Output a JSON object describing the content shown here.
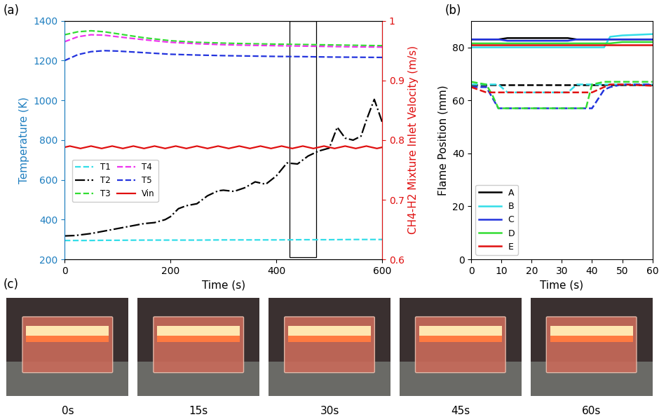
{
  "chart_data": [
    {
      "type": "line",
      "panel_label": "(a)",
      "xlabel": "Time (s)",
      "ylabel": "Temperature (K)",
      "y2label": "CH4-H2 Mixture Inlet Velocity (m/s)",
      "xlim": [
        0,
        600
      ],
      "xticks": [
        0,
        200,
        400,
        600
      ],
      "ylim": [
        200,
        1400
      ],
      "yticks": [
        200,
        400,
        600,
        800,
        1000,
        1200,
        1400
      ],
      "y2lim": [
        0.6,
        1
      ],
      "y2ticks": [
        0.6,
        0.7,
        0.8,
        0.9,
        1
      ],
      "legend": "center left",
      "highlight_x": [
        425,
        475
      ],
      "series": [
        {
          "name": "T1",
          "color": "#33dde8",
          "line_style": "dashed",
          "x": [
            0,
            25,
            50,
            75,
            100,
            150,
            200,
            250,
            300,
            350,
            400,
            450,
            500,
            550,
            600
          ],
          "values": [
            295,
            295,
            295,
            296,
            296,
            297,
            297,
            297,
            298,
            298,
            298,
            299,
            299,
            300,
            300
          ]
        },
        {
          "name": "T2",
          "color": "#000000",
          "line_style": "dashdot",
          "x": [
            0,
            20,
            50,
            80,
            100,
            120,
            150,
            170,
            190,
            200,
            215,
            230,
            250,
            270,
            290,
            300,
            320,
            340,
            360,
            380,
            400,
            420,
            440,
            460,
            480,
            500,
            515,
            530,
            545,
            560,
            570,
            585,
            600
          ],
          "values": [
            318,
            320,
            330,
            345,
            355,
            365,
            380,
            385,
            400,
            415,
            455,
            470,
            480,
            520,
            545,
            548,
            542,
            560,
            590,
            578,
            620,
            685,
            680,
            720,
            745,
            760,
            865,
            810,
            800,
            820,
            900,
            1005,
            890
          ]
        },
        {
          "name": "T3",
          "color": "#33dd33",
          "line_style": "dashed",
          "x": [
            0,
            25,
            50,
            75,
            100,
            150,
            200,
            250,
            300,
            350,
            400,
            450,
            500,
            550,
            600
          ],
          "values": [
            1330,
            1345,
            1350,
            1345,
            1335,
            1315,
            1300,
            1292,
            1288,
            1285,
            1283,
            1281,
            1279,
            1277,
            1275
          ]
        },
        {
          "name": "T4",
          "color": "#ee33ee",
          "line_style": "dashed",
          "x": [
            0,
            25,
            50,
            75,
            100,
            150,
            200,
            250,
            300,
            350,
            400,
            450,
            500,
            550,
            600
          ],
          "values": [
            1295,
            1320,
            1330,
            1328,
            1320,
            1305,
            1292,
            1285,
            1280,
            1277,
            1275,
            1273,
            1271,
            1269,
            1268
          ]
        },
        {
          "name": "T5",
          "color": "#2233dd",
          "line_style": "dashed",
          "x": [
            0,
            25,
            50,
            75,
            100,
            150,
            200,
            250,
            300,
            350,
            400,
            450,
            500,
            550,
            600
          ],
          "values": [
            1200,
            1230,
            1245,
            1250,
            1248,
            1240,
            1232,
            1228,
            1225,
            1223,
            1221,
            1220,
            1218,
            1217,
            1216
          ]
        },
        {
          "name": "Vin",
          "color": "#e01010",
          "line_style": "solid",
          "axis": "y2",
          "x": [
            0,
            10,
            20,
            30,
            40,
            50,
            60,
            70,
            80,
            90,
            100,
            110,
            120,
            130,
            140,
            150,
            160,
            170,
            180,
            190,
            200,
            210,
            220,
            230,
            240,
            250,
            260,
            270,
            280,
            290,
            300,
            310,
            320,
            330,
            340,
            350,
            360,
            370,
            380,
            390,
            400,
            410,
            420,
            430,
            440,
            450,
            460,
            470,
            480,
            490,
            500,
            510,
            520,
            530,
            540,
            550,
            560,
            570,
            580,
            590,
            600
          ],
          "values": [
            0.788,
            0.79,
            0.788,
            0.786,
            0.788,
            0.79,
            0.788,
            0.786,
            0.788,
            0.79,
            0.788,
            0.786,
            0.788,
            0.79,
            0.788,
            0.786,
            0.788,
            0.79,
            0.788,
            0.786,
            0.788,
            0.79,
            0.788,
            0.786,
            0.788,
            0.79,
            0.788,
            0.786,
            0.788,
            0.79,
            0.788,
            0.786,
            0.788,
            0.79,
            0.788,
            0.786,
            0.788,
            0.79,
            0.788,
            0.786,
            0.788,
            0.79,
            0.788,
            0.786,
            0.788,
            0.79,
            0.788,
            0.786,
            0.788,
            0.79,
            0.788,
            0.786,
            0.788,
            0.79,
            0.788,
            0.786,
            0.788,
            0.79,
            0.788,
            0.786,
            0.788
          ]
        }
      ]
    },
    {
      "type": "line",
      "panel_label": "(b)",
      "xlabel": "Time (s)",
      "ylabel": "Flame Position (mm)",
      "xlim": [
        0,
        60
      ],
      "xticks": [
        0,
        10,
        20,
        30,
        40,
        50,
        60
      ],
      "ylim": [
        0,
        90
      ],
      "yticks": [
        0,
        20,
        40,
        60,
        80
      ],
      "legend": "lower left",
      "x": [
        0,
        5,
        7,
        9,
        12,
        20,
        30,
        32,
        35,
        38,
        40,
        44,
        46,
        50,
        60
      ],
      "series": [
        {
          "name": "A",
          "color": "#000000",
          "line_style": "solid",
          "values": [
            83,
            83,
            83,
            83,
            83.5,
            83.5,
            83.5,
            83.5,
            83,
            83,
            83,
            83,
            83,
            83,
            83
          ]
        },
        {
          "name": "B",
          "color": "#33dde8",
          "line_style": "solid",
          "values": [
            80,
            80,
            80,
            80,
            80,
            80,
            80,
            80,
            80,
            80,
            80,
            80,
            84,
            84.5,
            85
          ]
        },
        {
          "name": "C",
          "color": "#2233dd",
          "line_style": "solid",
          "values": [
            83,
            83,
            83,
            83,
            82.5,
            82.5,
            82.5,
            82.5,
            83,
            83,
            83,
            83,
            83,
            83,
            83
          ]
        },
        {
          "name": "D",
          "color": "#33dd33",
          "line_style": "solid",
          "values": [
            81.5,
            81.5,
            81.5,
            81.5,
            81.5,
            81.5,
            81.5,
            81.5,
            81.5,
            81.5,
            81.5,
            81.5,
            81.5,
            82,
            82
          ]
        },
        {
          "name": "E",
          "color": "#e01010",
          "line_style": "solid",
          "values": [
            81,
            81,
            81,
            81,
            81,
            81,
            81,
            81,
            81,
            81,
            81,
            81,
            81,
            81,
            81
          ]
        },
        {
          "name": "A",
          "color": "#000000",
          "line_style": "dashed",
          "values": [
            66,
            66,
            66,
            66,
            66,
            66,
            66,
            66,
            66,
            66,
            66,
            66,
            66,
            66,
            66
          ]
        },
        {
          "name": "B",
          "color": "#33dde8",
          "line_style": "dashed",
          "values": [
            66,
            66,
            66,
            66,
            63,
            63,
            63,
            63,
            66,
            66,
            66,
            66,
            66,
            66,
            66
          ]
        },
        {
          "name": "C",
          "color": "#2233dd",
          "line_style": "dashed",
          "values": [
            65,
            65,
            61,
            57,
            57,
            57,
            57,
            57,
            57,
            57,
            57,
            64,
            65,
            66,
            66
          ]
        },
        {
          "name": "D",
          "color": "#33dd33",
          "line_style": "dashed",
          "values": [
            67,
            66,
            62,
            57,
            57,
            57,
            57,
            57,
            57,
            57,
            66,
            67,
            67,
            67,
            67
          ]
        },
        {
          "name": "E",
          "color": "#e01010",
          "line_style": "dashed",
          "values": [
            65,
            63,
            63,
            63,
            63,
            63,
            63,
            63,
            63,
            63,
            63,
            65,
            66,
            66,
            65.5
          ]
        }
      ]
    }
  ],
  "photos": {
    "panel_label": "(c)",
    "captions": [
      "0s",
      "15s",
      "30s",
      "45s",
      "60s"
    ]
  }
}
